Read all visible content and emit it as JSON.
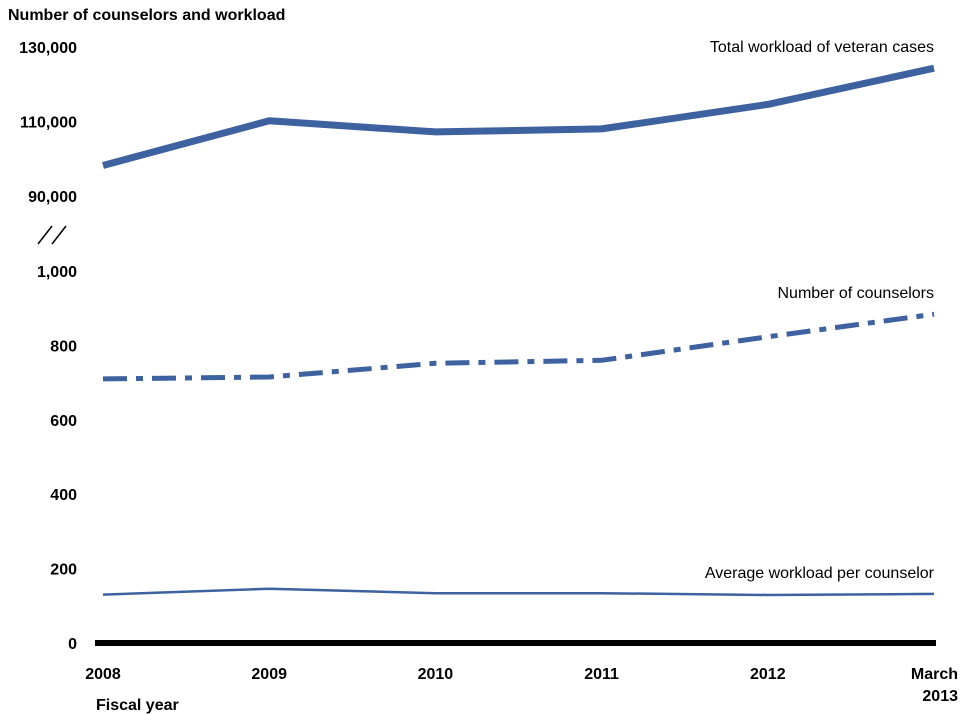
{
  "chart_data": {
    "type": "line",
    "title": "Number of counselors and workload",
    "xlabel": "Fiscal year",
    "categories": [
      "2008",
      "2009",
      "2010",
      "2011",
      "2012",
      "March 2013"
    ],
    "y_axis": {
      "broken": true,
      "lower_segment": {
        "ylim": [
          0,
          1000
        ],
        "ticks": [
          "0",
          "200",
          "400",
          "600",
          "800",
          "1,000"
        ]
      },
      "upper_segment": {
        "ylim": [
          90000,
          130000
        ],
        "ticks": [
          "90,000",
          "110,000",
          "130,000"
        ]
      }
    },
    "series": [
      {
        "name": "Total workload of veteran cases",
        "segment": "upper",
        "style": "thick-solid",
        "values": [
          98200,
          110200,
          107200,
          108000,
          114600,
          124300
        ]
      },
      {
        "name": "Number of counselors",
        "segment": "lower",
        "style": "dash-dot",
        "values": [
          710,
          715,
          752,
          760,
          823,
          884
        ]
      },
      {
        "name": "Average workload per counselor",
        "segment": "lower",
        "style": "thin-solid",
        "values": [
          130,
          146,
          134,
          134,
          129,
          132
        ]
      }
    ],
    "colors": {
      "series": "#3e62a0",
      "baseline": "#000000"
    },
    "grid": false,
    "legend": "inline labels at line ends"
  }
}
